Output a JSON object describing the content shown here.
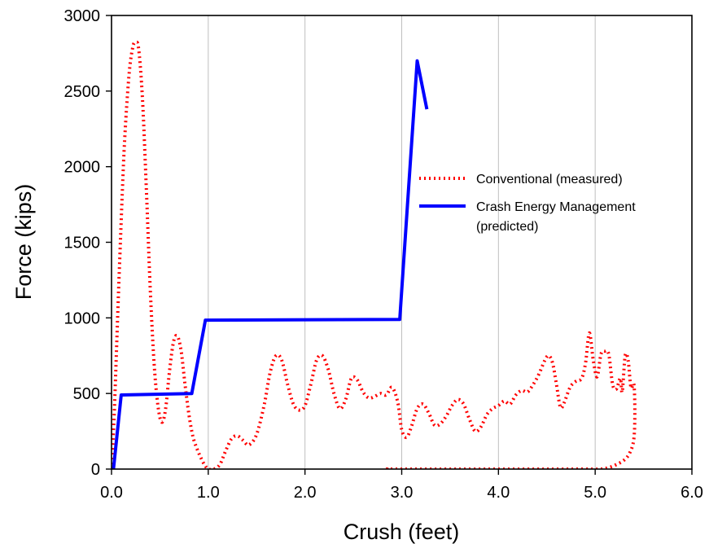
{
  "chart_data": {
    "type": "line",
    "xlabel": "Crush (feet)",
    "ylabel": "Force (kips)",
    "xlim": [
      0,
      6
    ],
    "ylim": [
      0,
      3000
    ],
    "x_ticks": [
      "0.0",
      "1.0",
      "2.0",
      "3.0",
      "4.0",
      "5.0",
      "6.0"
    ],
    "y_ticks": [
      "0",
      "500",
      "1000",
      "1500",
      "2000",
      "2500",
      "3000"
    ],
    "grid": "vertical",
    "legend_position": "right",
    "legend": [
      {
        "label": "Conventional (measured)"
      },
      {
        "label": "Crash Energy Management"
      },
      {
        "label": "(predicted)"
      }
    ],
    "series": [
      {
        "name": "Conventional (measured)",
        "color": "#ff0000",
        "style": "dotted",
        "points": [
          [
            0.0,
            0
          ],
          [
            0.03,
            400
          ],
          [
            0.08,
            1300
          ],
          [
            0.13,
            2100
          ],
          [
            0.18,
            2600
          ],
          [
            0.22,
            2790
          ],
          [
            0.25,
            2820
          ],
          [
            0.28,
            2780
          ],
          [
            0.32,
            2450
          ],
          [
            0.36,
            1850
          ],
          [
            0.4,
            1200
          ],
          [
            0.44,
            700
          ],
          [
            0.48,
            420
          ],
          [
            0.52,
            310
          ],
          [
            0.56,
            400
          ],
          [
            0.6,
            650
          ],
          [
            0.64,
            840
          ],
          [
            0.68,
            880
          ],
          [
            0.72,
            780
          ],
          [
            0.76,
            560
          ],
          [
            0.8,
            360
          ],
          [
            0.84,
            220
          ],
          [
            0.88,
            140
          ],
          [
            0.92,
            80
          ],
          [
            0.96,
            30
          ],
          [
            1.0,
            0
          ],
          [
            1.06,
            0
          ],
          [
            1.12,
            30
          ],
          [
            1.18,
            120
          ],
          [
            1.24,
            200
          ],
          [
            1.3,
            220
          ],
          [
            1.36,
            190
          ],
          [
            1.42,
            160
          ],
          [
            1.5,
            230
          ],
          [
            1.58,
            430
          ],
          [
            1.64,
            640
          ],
          [
            1.7,
            750
          ],
          [
            1.76,
            720
          ],
          [
            1.82,
            560
          ],
          [
            1.88,
            430
          ],
          [
            1.94,
            390
          ],
          [
            2.0,
            420
          ],
          [
            2.06,
            560
          ],
          [
            2.12,
            720
          ],
          [
            2.18,
            750
          ],
          [
            2.24,
            660
          ],
          [
            2.3,
            500
          ],
          [
            2.36,
            400
          ],
          [
            2.42,
            460
          ],
          [
            2.48,
            600
          ],
          [
            2.54,
            590
          ],
          [
            2.6,
            510
          ],
          [
            2.66,
            470
          ],
          [
            2.72,
            480
          ],
          [
            2.78,
            500
          ],
          [
            2.84,
            490
          ],
          [
            2.9,
            540
          ],
          [
            2.96,
            440
          ],
          [
            3.0,
            260
          ],
          [
            3.05,
            210
          ],
          [
            3.1,
            280
          ],
          [
            3.16,
            400
          ],
          [
            3.22,
            430
          ],
          [
            3.28,
            370
          ],
          [
            3.34,
            290
          ],
          [
            3.4,
            300
          ],
          [
            3.46,
            350
          ],
          [
            3.52,
            420
          ],
          [
            3.58,
            460
          ],
          [
            3.64,
            430
          ],
          [
            3.7,
            330
          ],
          [
            3.76,
            250
          ],
          [
            3.82,
            280
          ],
          [
            3.88,
            360
          ],
          [
            3.94,
            400
          ],
          [
            4.0,
            420
          ],
          [
            4.06,
            450
          ],
          [
            4.12,
            430
          ],
          [
            4.18,
            490
          ],
          [
            4.24,
            520
          ],
          [
            4.3,
            510
          ],
          [
            4.36,
            560
          ],
          [
            4.42,
            630
          ],
          [
            4.48,
            720
          ],
          [
            4.52,
            750
          ],
          [
            4.56,
            700
          ],
          [
            4.6,
            560
          ],
          [
            4.64,
            410
          ],
          [
            4.68,
            440
          ],
          [
            4.74,
            540
          ],
          [
            4.8,
            580
          ],
          [
            4.86,
            600
          ],
          [
            4.9,
            700
          ],
          [
            4.94,
            900
          ],
          [
            4.98,
            720
          ],
          [
            5.02,
            610
          ],
          [
            5.06,
            760
          ],
          [
            5.1,
            780
          ],
          [
            5.14,
            760
          ],
          [
            5.18,
            560
          ],
          [
            5.22,
            530
          ],
          [
            5.26,
            600
          ],
          [
            5.28,
            510
          ],
          [
            5.31,
            750
          ],
          [
            5.34,
            720
          ],
          [
            5.37,
            540
          ],
          [
            5.4,
            560
          ],
          [
            5.41,
            380
          ],
          [
            5.4,
            200
          ],
          [
            5.36,
            110
          ],
          [
            5.3,
            60
          ],
          [
            5.22,
            30
          ],
          [
            5.14,
            10
          ],
          [
            5.06,
            0
          ],
          [
            4.95,
            0
          ],
          [
            4.82,
            0
          ],
          [
            4.7,
            0
          ],
          [
            4.55,
            0
          ],
          [
            4.4,
            0
          ],
          [
            3.95,
            0
          ],
          [
            3.85,
            0
          ],
          [
            3.6,
            0
          ],
          [
            3.5,
            0
          ],
          [
            2.88,
            0
          ],
          [
            2.85,
            0
          ]
        ]
      },
      {
        "name": "Crash Energy Management (predicted)",
        "color": "#0000ff",
        "style": "solid",
        "points": [
          [
            0.02,
            0
          ],
          [
            0.1,
            490
          ],
          [
            0.83,
            500
          ],
          [
            0.97,
            985
          ],
          [
            2.98,
            990
          ],
          [
            3.16,
            2700
          ],
          [
            3.26,
            2380
          ]
        ]
      }
    ]
  }
}
